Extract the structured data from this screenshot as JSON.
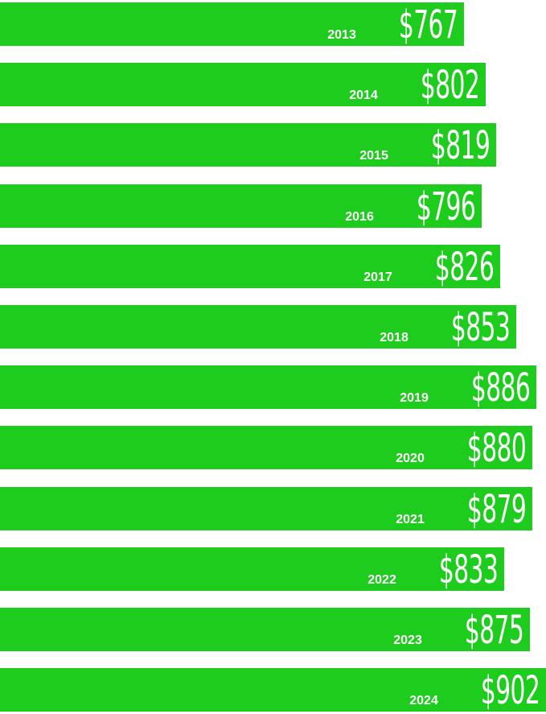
{
  "colors": {
    "bar": "#1dcc1d",
    "text": "#ffffff",
    "background": "#ffffff"
  },
  "chart_data": {
    "type": "bar",
    "orientation": "horizontal",
    "grid": false,
    "categories": [
      "2013",
      "2014",
      "2015",
      "2016",
      "2017",
      "2018",
      "2019",
      "2020",
      "2021",
      "2022",
      "2023",
      "2024"
    ],
    "values": [
      767,
      802,
      819,
      796,
      826,
      853,
      886,
      880,
      879,
      833,
      875,
      902
    ],
    "value_labels": [
      "$767",
      "$802",
      "$819",
      "$796",
      "$826",
      "$853",
      "$886",
      "$880",
      "$879",
      "$833",
      "$875",
      "$902"
    ],
    "xlim": [
      0,
      902
    ]
  }
}
